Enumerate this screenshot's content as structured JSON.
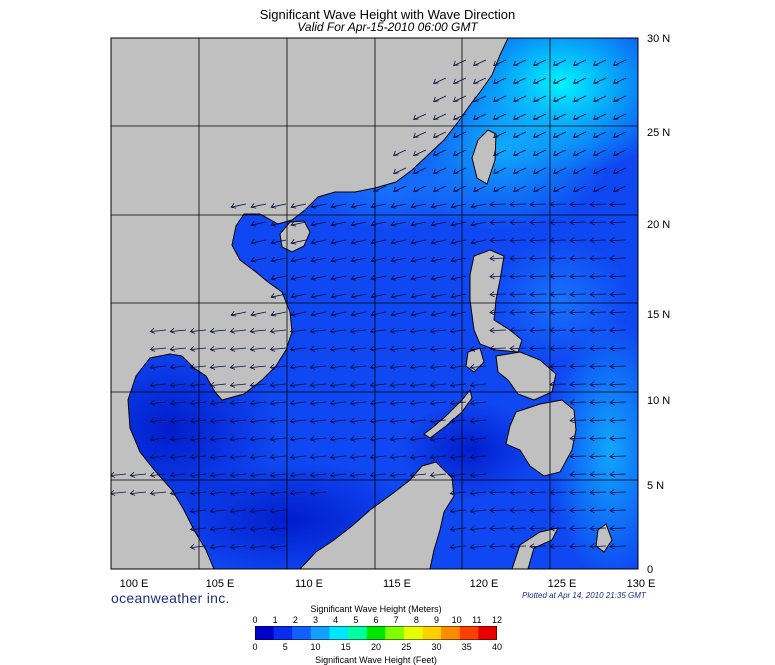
{
  "header": {
    "title": "Significant Wave Height with Wave Direction",
    "subtitle": "Valid For Apr-15-2010 06:00 GMT"
  },
  "map": {
    "lon_range": [
      100,
      130
    ],
    "lat_range": [
      0,
      30
    ],
    "lon_labels": [
      "100 E",
      "105 E",
      "110 E",
      "115 E",
      "120 E",
      "125 E",
      "130 E"
    ],
    "lat_labels": [
      "30 N",
      "25 N",
      "20 N",
      "15 N",
      "10 N",
      "5 N",
      "0"
    ],
    "land_color": "#c0c0c0",
    "grid": true,
    "wave_direction": "arrows toward southwest in north, toward west across east and central region"
  },
  "footer": {
    "brand": "oceanweather inc.",
    "plotted": "Plotted at Apr 14, 2010 21:35 GMT"
  },
  "colorbar": {
    "title_meters": "Significant Wave Height (Meters)",
    "title_feet": "Significant Wave Height (Feet)",
    "meters_ticks": [
      "0",
      "1",
      "2",
      "3",
      "4",
      "5",
      "6",
      "7",
      "8",
      "9",
      "10",
      "11",
      "12"
    ],
    "feet_ticks": [
      "0",
      "5",
      "10",
      "15",
      "20",
      "25",
      "30",
      "35",
      "40"
    ],
    "colors": [
      "#0000c8",
      "#0a2cf0",
      "#1460ff",
      "#14a0ff",
      "#00e6ff",
      "#00ffa0",
      "#00e800",
      "#80ff00",
      "#e8ff00",
      "#ffd000",
      "#ff8c00",
      "#ff4000",
      "#e80000"
    ]
  }
}
